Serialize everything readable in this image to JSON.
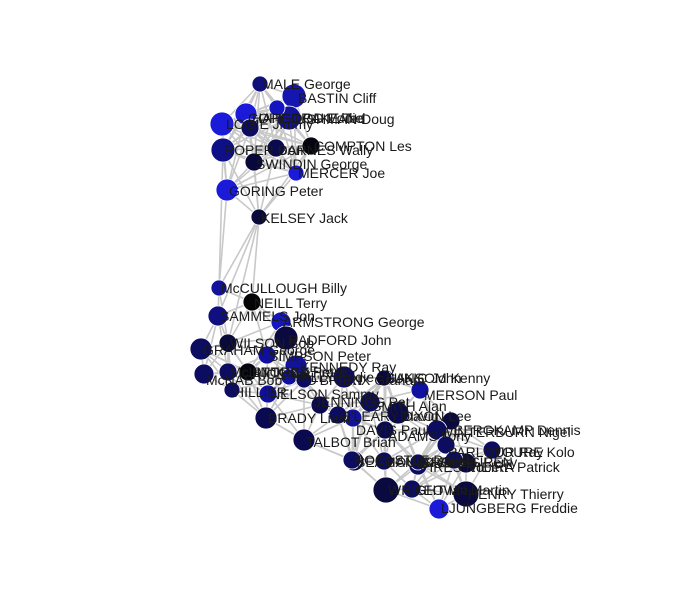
{
  "graph": {
    "nodes": [
      {
        "id": "male",
        "label": "MALE George",
        "color": "#10107a"
      },
      {
        "id": "bastin",
        "label": "BASTIN Cliff",
        "color": "#1515b0"
      },
      {
        "id": "cope",
        "label": "COPE",
        "color": "#1a1ad8"
      },
      {
        "id": "hapgood",
        "label": "HAPGOOD Eddie",
        "color": "#0c0c60"
      },
      {
        "id": "logie",
        "label": "LOGIE Jimmy",
        "color": "#1a1ad8"
      },
      {
        "id": "drake",
        "label": "DRAKE Ted",
        "color": "#12129a"
      },
      {
        "id": "lishman",
        "label": "LISHMAN Doug",
        "color": "#1616c0"
      },
      {
        "id": "roper",
        "label": "ROPER Don",
        "color": "#0f0f88"
      },
      {
        "id": "barnes",
        "label": "BARNES Wally",
        "color": "#0a0a50"
      },
      {
        "id": "compton",
        "label": "COMPTON Les",
        "color": "#050510"
      },
      {
        "id": "swindin",
        "label": "SWINDIN George",
        "color": "#08083a"
      },
      {
        "id": "mercer",
        "label": "MERCER Joe",
        "color": "#1a1ad8"
      },
      {
        "id": "goring",
        "label": "GORING Peter",
        "color": "#1a1ad8"
      },
      {
        "id": "kelsey",
        "label": "KELSEY Jack",
        "color": "#0a0a3a"
      },
      {
        "id": "mccullough",
        "label": "McCULLOUGH Billy",
        "color": "#12129a"
      },
      {
        "id": "neill",
        "label": "NEILL Terry",
        "color": "#050508"
      },
      {
        "id": "sammels",
        "label": "SAMMELS Jon",
        "color": "#0f0f80"
      },
      {
        "id": "armstrong",
        "label": "ARMSTRONG George",
        "color": "#1616c0"
      },
      {
        "id": "wilson",
        "label": "WILSON Bob",
        "color": "#0a0a3a"
      },
      {
        "id": "radford",
        "label": "RADFORD John",
        "color": "#0a0a40"
      },
      {
        "id": "graham",
        "label": "GRAHAM George",
        "color": "#0c0c60"
      },
      {
        "id": "simpson",
        "label": "SIMPSON Peter",
        "color": "#1010a0"
      },
      {
        "id": "mcnab",
        "label": "McNAB Bob",
        "color": "#0c0c60"
      },
      {
        "id": "storey",
        "label": "STOREY Peter",
        "color": "#0c0c60"
      },
      {
        "id": "kennedy",
        "label": "KENNEDY Ray",
        "color": "#12129a"
      },
      {
        "id": "rice",
        "label": "RICE Pat",
        "color": "#050510"
      },
      {
        "id": "kelly",
        "label": "KELLY Eddie",
        "color": "#1010a0"
      },
      {
        "id": "rix",
        "label": "RIX Graham",
        "color": "#0c0c60"
      },
      {
        "id": "sansom",
        "label": "SANSOM Kenny",
        "color": "#0a0a50"
      },
      {
        "id": "lukic",
        "label": "LUKIC John",
        "color": "#08083a"
      },
      {
        "id": "jennings",
        "label": "JENNINGS Pat",
        "color": "#0a0a50"
      },
      {
        "id": "brady",
        "label": "BRADY Liam",
        "color": "#0a0a50"
      },
      {
        "id": "smith",
        "label": "SMITH Alan",
        "color": "#0c0c60"
      },
      {
        "id": "merson",
        "label": "MERSON Paul",
        "color": "#1010a0"
      },
      {
        "id": "dixon",
        "label": "DIXON Lee",
        "color": "#0a0a50"
      },
      {
        "id": "keown",
        "label": "KEOWN Martin",
        "color": "#0c0c60"
      },
      {
        "id": "bergkamp",
        "label": "BERGKAMP Dennis",
        "color": "#0a0a40"
      },
      {
        "id": "adams",
        "label": "ADAMS Tony",
        "color": "#0a0a50"
      },
      {
        "id": "davis",
        "label": "DAVIS Paul",
        "color": "#12129a"
      },
      {
        "id": "winterburn",
        "label": "WINTERBURN Nigel",
        "color": "#0c0c60"
      },
      {
        "id": "talbot",
        "label": "TALBOT Brian",
        "color": "#0a0a50"
      },
      {
        "id": "parlour",
        "label": "PARLOUR Ray",
        "color": "#0c0c60"
      },
      {
        "id": "toure",
        "label": "TOURE Kolo",
        "color": "#0c0c60"
      },
      {
        "id": "vieira",
        "label": "VIEIRA Patrick",
        "color": "#0a0a40"
      },
      {
        "id": "lauren",
        "label": "LAUREN",
        "color": "#0c0c60"
      },
      {
        "id": "seaman",
        "label": "SEAMAN David",
        "color": "#0a0a40"
      },
      {
        "id": "bould",
        "label": "BOULD Steve",
        "color": "#0c0c60"
      },
      {
        "id": "pires",
        "label": "PIRES Robert",
        "color": "#0c0c60"
      },
      {
        "id": "ljungberg",
        "label": "LJUNGBERG Freddie",
        "color": "#1a1ad8"
      },
      {
        "id": "henry",
        "label": "HENRY Thierry",
        "color": "#0a0a40"
      },
      {
        "id": "wright",
        "label": "WRIGHT Ian",
        "color": "#0a0a40"
      },
      {
        "id": "hill",
        "label": "HILLIER",
        "color": "#0c0c60"
      },
      {
        "id": "rocastle",
        "label": "ROCASTLE David",
        "color": "#0c0c60"
      },
      {
        "id": "groves",
        "label": "GROVES Perry",
        "color": "#0c0c60"
      },
      {
        "id": "oleary",
        "label": "O'LEARY David",
        "color": "#0c0c60"
      },
      {
        "id": "nelson",
        "label": "NELSON Sammy",
        "color": "#1010a0"
      },
      {
        "id": "oteam",
        "label": "O'BRIEN",
        "color": "#0c0c60"
      },
      {
        "id": "mclintock",
        "label": "McLINTOCK Frank",
        "color": "#0c0c60"
      }
    ]
  }
}
